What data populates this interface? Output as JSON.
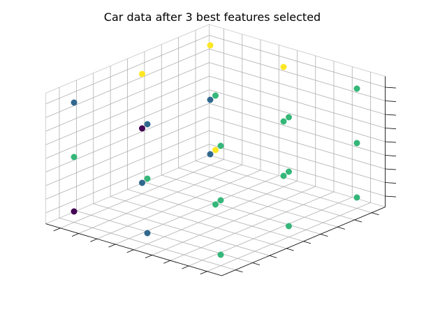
{
  "chart_data": {
    "type": "scatter",
    "projection": "3d",
    "title": "Car data after 3 best features selected",
    "xlabel": "",
    "ylabel": "",
    "zlabel": "",
    "tick_labels_shown": false,
    "grid": true,
    "pane_color": "#f2f2f2",
    "colormap": "viridis",
    "class_colors": {
      "0": "#440154",
      "1": "#31688e",
      "2": "#35b779",
      "3": "#fde725"
    },
    "points": [
      {
        "x": 0,
        "y": 0,
        "z": 0,
        "c": 2
      },
      {
        "x": 0,
        "y": 0,
        "z": 1,
        "c": 2
      },
      {
        "x": 0,
        "y": 0,
        "z": 2,
        "c": 2
      },
      {
        "x": 0,
        "y": 1,
        "z": 0,
        "c": 2
      },
      {
        "x": 0,
        "y": 1,
        "z": 1,
        "c": 2
      },
      {
        "x": 0,
        "y": 1,
        "z": 2,
        "c": 2
      },
      {
        "x": 0,
        "y": 2,
        "z": 0,
        "c": 2
      },
      {
        "x": 0,
        "y": 2,
        "z": 1,
        "c": 2
      },
      {
        "x": 0,
        "y": 2,
        "z": 2,
        "c": 2
      },
      {
        "x": 1,
        "y": 0,
        "z": 0,
        "c": 1
      },
      {
        "x": 1,
        "y": 0,
        "z": 1,
        "c": 2
      },
      {
        "x": 1,
        "y": 0,
        "z": 2,
        "c": 1
      },
      {
        "x": 1,
        "y": 1,
        "z": 0,
        "c": 2
      },
      {
        "x": 1,
        "y": 1,
        "z": 1,
        "c": 3
      },
      {
        "x": 1,
        "y": 1,
        "z": 2,
        "c": 2
      },
      {
        "x": 1,
        "y": 2,
        "z": 0,
        "c": 3
      },
      {
        "x": 1,
        "y": 2,
        "z": 1,
        "c": 2
      },
      {
        "x": 1,
        "y": 2,
        "z": 2,
        "c": 2
      },
      {
        "x": 2,
        "y": 0,
        "z": 0,
        "c": 1
      },
      {
        "x": 2,
        "y": 0,
        "z": 1,
        "c": 2
      },
      {
        "x": 2,
        "y": 0,
        "z": 2,
        "c": 0
      },
      {
        "x": 2,
        "y": 1,
        "z": 0,
        "c": 3
      },
      {
        "x": 2,
        "y": 1,
        "z": 1,
        "c": 0
      },
      {
        "x": 2,
        "y": 1,
        "z": 2,
        "c": 1
      },
      {
        "x": 2,
        "y": 2,
        "z": 0,
        "c": 3
      },
      {
        "x": 2,
        "y": 2,
        "z": 1,
        "c": 1
      },
      {
        "x": 2,
        "y": 2,
        "z": 2,
        "c": 1
      }
    ]
  }
}
